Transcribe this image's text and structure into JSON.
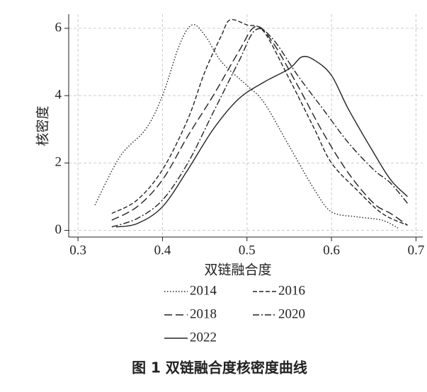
{
  "chart_data": {
    "type": "line",
    "caption": "图 1  双链融合度核密度曲线",
    "xlabel": "双链融合度",
    "ylabel": "核密度",
    "xlim": [
      0.289,
      0.708
    ],
    "ylim": [
      -0.2,
      6.42
    ],
    "xticks": [
      0.3,
      0.4,
      0.5,
      0.6,
      0.7
    ],
    "yticks": [
      0,
      2,
      4,
      6
    ],
    "grid": true,
    "series": [
      {
        "name": "2014",
        "color": "#222222",
        "linestyle": "dotted",
        "x": [
          0.32,
          0.35,
          0.38,
          0.4,
          0.42,
          0.435,
          0.45,
          0.47,
          0.5,
          0.52,
          0.55,
          0.58,
          0.6,
          0.63,
          0.66,
          0.68
        ],
        "values": [
          0.75,
          2.2,
          3.0,
          4.0,
          5.5,
          6.1,
          5.8,
          5.0,
          4.3,
          3.8,
          2.5,
          1.2,
          0.55,
          0.4,
          0.3,
          0.05
        ]
      },
      {
        "name": "2016",
        "color": "#222222",
        "linestyle": "dashed",
        "x": [
          0.34,
          0.37,
          0.4,
          0.43,
          0.45,
          0.47,
          0.48,
          0.5,
          0.52,
          0.55,
          0.58,
          0.6,
          0.63,
          0.66,
          0.69
        ],
        "values": [
          0.5,
          0.9,
          1.8,
          3.3,
          4.7,
          5.8,
          6.25,
          6.1,
          5.9,
          4.5,
          3.0,
          2.0,
          1.2,
          0.5,
          0.15
        ]
      },
      {
        "name": "2018",
        "color": "#222222",
        "linestyle": "longdash",
        "x": [
          0.34,
          0.37,
          0.4,
          0.43,
          0.46,
          0.49,
          0.51,
          0.53,
          0.56,
          0.59,
          0.62,
          0.65,
          0.67,
          0.69
        ],
        "values": [
          0.3,
          0.7,
          1.5,
          2.8,
          4.0,
          5.3,
          6.05,
          5.6,
          4.3,
          2.9,
          1.7,
          0.8,
          0.5,
          0.15
        ]
      },
      {
        "name": "2020",
        "color": "#222222",
        "linestyle": "dashdot",
        "x": [
          0.34,
          0.37,
          0.4,
          0.43,
          0.46,
          0.49,
          0.51,
          0.53,
          0.56,
          0.59,
          0.62,
          0.65,
          0.67,
          0.69
        ],
        "values": [
          0.1,
          0.35,
          0.9,
          2.0,
          3.5,
          5.0,
          5.95,
          5.7,
          4.6,
          3.6,
          2.6,
          1.8,
          1.4,
          0.8
        ]
      },
      {
        "name": "2022",
        "color": "#222222",
        "linestyle": "solid",
        "x": [
          0.345,
          0.37,
          0.4,
          0.43,
          0.46,
          0.49,
          0.52,
          0.55,
          0.565,
          0.58,
          0.6,
          0.62,
          0.65,
          0.67,
          0.69
        ],
        "values": [
          0.1,
          0.2,
          0.7,
          1.8,
          3.0,
          3.9,
          4.4,
          4.8,
          5.15,
          5.05,
          4.6,
          3.6,
          2.3,
          1.5,
          1.0
        ]
      }
    ]
  }
}
